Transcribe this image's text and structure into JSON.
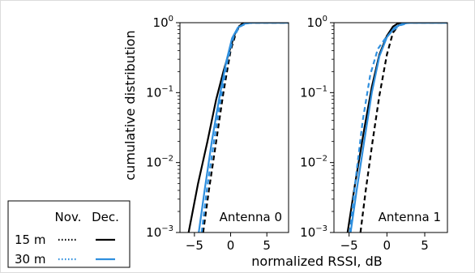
{
  "chart_data": {
    "type": "line",
    "xlabel": "normalized RSSI, dB",
    "ylabel": "cumulative distribution",
    "y_scale": "log",
    "ylim": [
      0.001,
      1
    ],
    "xlim": [
      -7,
      8
    ],
    "x_ticks": [
      -5,
      0,
      5
    ],
    "x_tick_labels": [
      "−5",
      "0",
      "5"
    ],
    "y_ticks": [
      {
        "value": 1,
        "base": "10",
        "exp": "0"
      },
      {
        "value": 0.1,
        "base": "10",
        "exp": "−1"
      },
      {
        "value": 0.01,
        "base": "10",
        "exp": "−2"
      },
      {
        "value": 0.001,
        "base": "10",
        "exp": "−3"
      }
    ],
    "colors": {
      "15 m": "#000000",
      "30 m": "#2f8fde"
    },
    "line_styles": {
      "Nov.": "dotted",
      "Dec.": "solid"
    },
    "panels": [
      {
        "title": "Antenna 0",
        "series": [
          {
            "name": "15 m Dec.",
            "distance": "15 m",
            "month": "Dec.",
            "style": "solid",
            "x": [
              -5.8,
              -4.5,
              -3.2,
              -2.0,
              -1.0,
              0.0,
              0.6,
              1.2,
              2.0,
              8.0
            ],
            "y": [
              0.001,
              0.005,
              0.02,
              0.08,
              0.2,
              0.45,
              0.7,
              0.9,
              1.0,
              1.0
            ]
          },
          {
            "name": "15 m Nov.",
            "distance": "15 m",
            "month": "Nov.",
            "style": "dashed",
            "x": [
              -3.8,
              -3.0,
              -2.0,
              -1.0,
              0.0,
              0.8,
              1.5,
              2.5,
              8.0
            ],
            "y": [
              0.001,
              0.004,
              0.02,
              0.1,
              0.4,
              0.75,
              0.95,
              1.0,
              1.0
            ]
          },
          {
            "name": "30 m Dec.",
            "distance": "30 m",
            "month": "Dec.",
            "style": "solid",
            "x": [
              -4.4,
              -3.6,
              -2.6,
              -1.6,
              -0.6,
              0.2,
              1.0,
              2.0,
              3.0,
              8.0
            ],
            "y": [
              0.001,
              0.004,
              0.02,
              0.08,
              0.28,
              0.6,
              0.85,
              0.97,
              1.0,
              1.0
            ]
          },
          {
            "name": "30 m Nov.",
            "distance": "30 m",
            "month": "Nov.",
            "style": "dashed",
            "x": [
              -4.0,
              -3.3,
              -2.3,
              -1.3,
              -0.4,
              0.4,
              1.2,
              2.2,
              3.0,
              8.0
            ],
            "y": [
              0.001,
              0.004,
              0.02,
              0.09,
              0.3,
              0.62,
              0.87,
              0.98,
              1.0,
              1.0
            ]
          }
        ]
      },
      {
        "title": "Antenna 1",
        "series": [
          {
            "name": "15 m Dec.",
            "distance": "15 m",
            "month": "Dec.",
            "style": "solid",
            "x": [
              -5.2,
              -4.2,
              -3.0,
              -2.0,
              -1.0,
              0.0,
              0.8,
              1.6,
              8.0
            ],
            "y": [
              0.001,
              0.005,
              0.03,
              0.12,
              0.35,
              0.65,
              0.88,
              1.0,
              1.0
            ]
          },
          {
            "name": "15 m Nov.",
            "distance": "15 m",
            "month": "Nov.",
            "style": "dashed",
            "x": [
              -3.5,
              -2.8,
              -1.9,
              -1.0,
              0.0,
              0.8,
              1.6,
              2.4,
              8.0
            ],
            "y": [
              0.001,
              0.004,
              0.02,
              0.09,
              0.35,
              0.72,
              0.93,
              1.0,
              1.0
            ]
          },
          {
            "name": "30 m Dec.",
            "distance": "30 m",
            "month": "Dec.",
            "style": "solid",
            "x": [
              -4.8,
              -4.0,
              -3.0,
              -2.0,
              -1.0,
              0.0,
              1.0,
              2.0,
              3.0,
              8.0
            ],
            "y": [
              0.001,
              0.004,
              0.02,
              0.1,
              0.33,
              0.62,
              0.85,
              0.96,
              1.0,
              1.0
            ]
          },
          {
            "name": "30 m Nov.",
            "distance": "30 m",
            "month": "Nov.",
            "style": "dashed",
            "x": [
              -4.9,
              -4.2,
              -3.2,
              -2.2,
              -1.2,
              -0.2,
              0.8,
              1.8,
              3.0,
              8.0
            ],
            "y": [
              0.001,
              0.005,
              0.04,
              0.18,
              0.42,
              0.6,
              0.78,
              0.92,
              1.0,
              1.0
            ]
          }
        ]
      }
    ],
    "legend": {
      "placement": "bottom-left",
      "columns": [
        "Nov.",
        "Dec."
      ],
      "rows": [
        {
          "label": "15 m",
          "color": "#000000"
        },
        {
          "label": "30 m",
          "color": "#2f8fde"
        }
      ]
    }
  }
}
